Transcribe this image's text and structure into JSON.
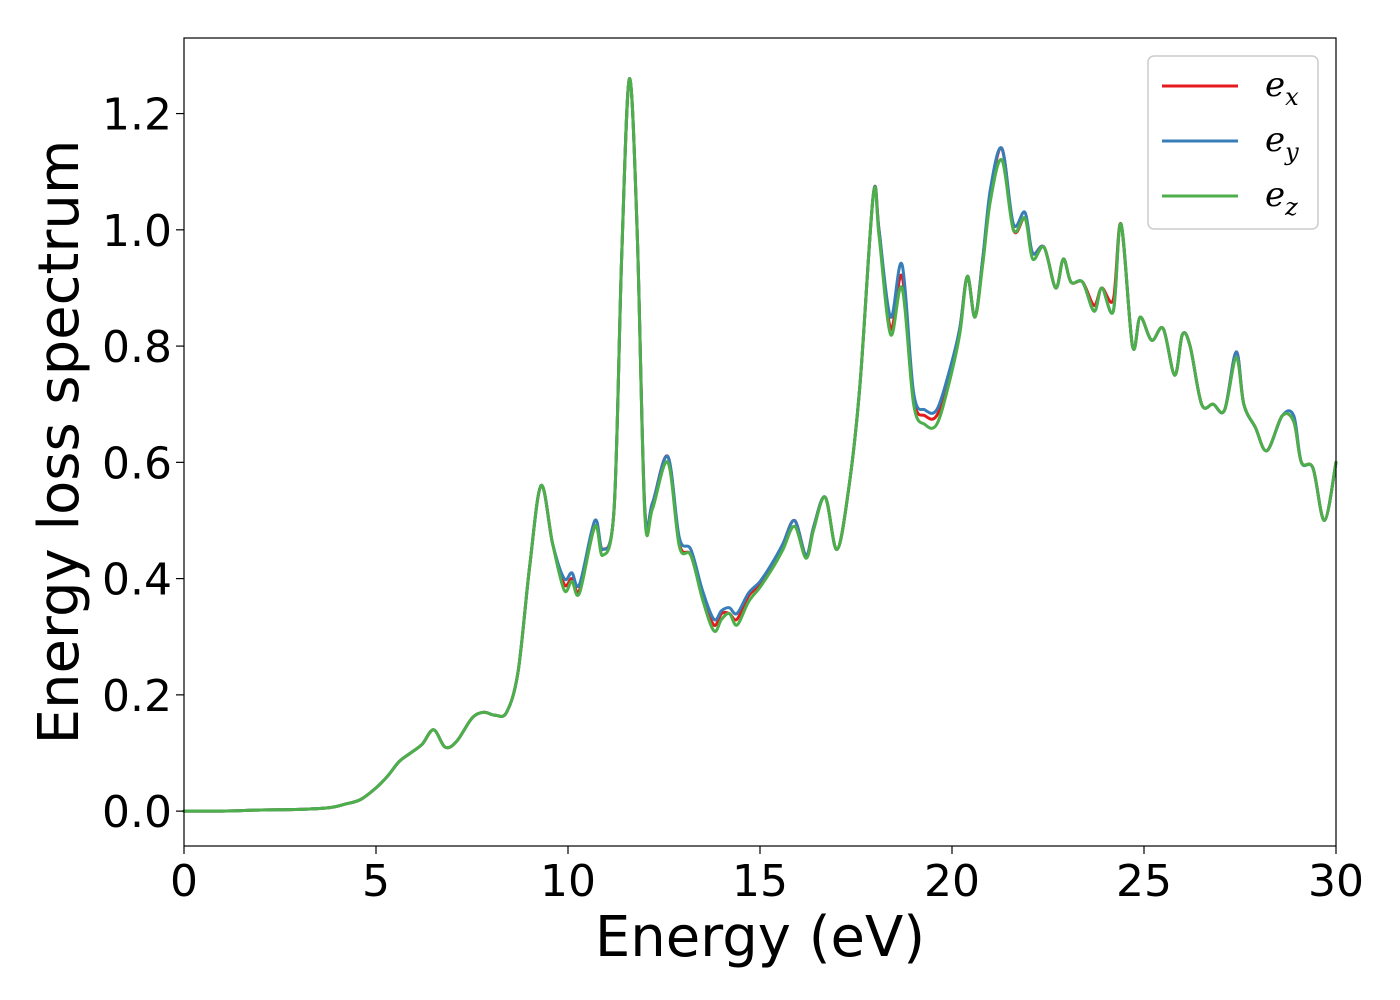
{
  "chart_data": {
    "type": "line",
    "title": "",
    "xlabel": "Energy (eV)",
    "ylabel": "Energy loss spectrum",
    "xlim": [
      0,
      30
    ],
    "ylim": [
      -0.06,
      1.33
    ],
    "xticks": [
      "0",
      "5",
      "10",
      "15",
      "20",
      "25",
      "30"
    ],
    "yticks": [
      "0.0",
      "0.2",
      "0.4",
      "0.6",
      "0.8",
      "1.0",
      "1.2"
    ],
    "grid": false,
    "legend_position": "top-right",
    "colors": {
      "e_x": "#e41a1c",
      "e_y": "#377eb8",
      "e_z": "#4daf4a"
    },
    "x": [
      0,
      1,
      2,
      3,
      3.8,
      4.2,
      4.6,
      5.0,
      5.3,
      5.6,
      5.9,
      6.2,
      6.5,
      6.8,
      7.1,
      7.5,
      7.8,
      8.1,
      8.4,
      8.7,
      9.0,
      9.3,
      9.6,
      9.9,
      10.1,
      10.3,
      10.7,
      10.9,
      11.2,
      11.4,
      11.6,
      11.8,
      12.0,
      12.2,
      12.6,
      12.9,
      13.2,
      13.5,
      13.8,
      14.0,
      14.2,
      14.4,
      14.7,
      15.0,
      15.3,
      15.6,
      15.9,
      16.2,
      16.4,
      16.7,
      17.0,
      17.3,
      17.6,
      17.95,
      18.1,
      18.4,
      18.7,
      19.0,
      19.3,
      19.6,
      19.9,
      20.2,
      20.4,
      20.6,
      20.8,
      21.0,
      21.3,
      21.6,
      21.9,
      22.1,
      22.4,
      22.7,
      22.9,
      23.1,
      23.4,
      23.7,
      23.9,
      24.2,
      24.4,
      24.7,
      24.9,
      25.2,
      25.5,
      25.8,
      26.0,
      26.2,
      26.5,
      26.8,
      27.1,
      27.4,
      27.6,
      27.9,
      28.2,
      28.6,
      28.9,
      29.1,
      29.4,
      29.7,
      30
    ],
    "series": [
      {
        "name": "e_x",
        "label_base": "e",
        "label_sub": "x",
        "values": [
          0,
          0,
          0.002,
          0.003,
          0.006,
          0.012,
          0.02,
          0.04,
          0.06,
          0.085,
          0.1,
          0.115,
          0.14,
          0.11,
          0.12,
          0.16,
          0.17,
          0.165,
          0.17,
          0.24,
          0.42,
          0.56,
          0.46,
          0.39,
          0.4,
          0.38,
          0.49,
          0.45,
          0.52,
          0.96,
          1.26,
          1.0,
          0.52,
          0.53,
          0.61,
          0.46,
          0.44,
          0.37,
          0.32,
          0.34,
          0.34,
          0.33,
          0.37,
          0.39,
          0.42,
          0.46,
          0.5,
          0.44,
          0.49,
          0.54,
          0.45,
          0.55,
          0.73,
          1.06,
          1.0,
          0.83,
          0.92,
          0.71,
          0.68,
          0.68,
          0.74,
          0.83,
          0.92,
          0.85,
          0.95,
          1.06,
          1.14,
          1.0,
          1.02,
          0.96,
          0.97,
          0.9,
          0.95,
          0.91,
          0.91,
          0.87,
          0.9,
          0.88,
          1.01,
          0.8,
          0.85,
          0.81,
          0.83,
          0.75,
          0.82,
          0.8,
          0.7,
          0.7,
          0.69,
          0.79,
          0.7,
          0.66,
          0.62,
          0.68,
          0.67,
          0.6,
          0.59,
          0.5,
          0.6
        ]
      },
      {
        "name": "e_y",
        "label_base": "e",
        "label_sub": "y",
        "values": [
          0,
          0,
          0.002,
          0.003,
          0.006,
          0.012,
          0.02,
          0.04,
          0.06,
          0.085,
          0.1,
          0.115,
          0.14,
          0.11,
          0.12,
          0.16,
          0.17,
          0.165,
          0.17,
          0.24,
          0.42,
          0.56,
          0.46,
          0.4,
          0.41,
          0.39,
          0.5,
          0.45,
          0.52,
          0.96,
          1.26,
          1.0,
          0.52,
          0.53,
          0.61,
          0.47,
          0.45,
          0.38,
          0.33,
          0.345,
          0.35,
          0.34,
          0.375,
          0.395,
          0.425,
          0.46,
          0.5,
          0.44,
          0.49,
          0.54,
          0.45,
          0.55,
          0.73,
          1.06,
          1.0,
          0.85,
          0.94,
          0.72,
          0.69,
          0.69,
          0.75,
          0.83,
          0.92,
          0.85,
          0.95,
          1.07,
          1.14,
          1.01,
          1.03,
          0.96,
          0.97,
          0.9,
          0.95,
          0.91,
          0.91,
          0.86,
          0.9,
          0.86,
          1.01,
          0.8,
          0.85,
          0.81,
          0.83,
          0.75,
          0.82,
          0.8,
          0.7,
          0.7,
          0.69,
          0.79,
          0.7,
          0.66,
          0.62,
          0.68,
          0.68,
          0.6,
          0.59,
          0.5,
          0.6
        ]
      },
      {
        "name": "e_z",
        "label_base": "e",
        "label_sub": "z",
        "values": [
          0,
          0,
          0.002,
          0.003,
          0.006,
          0.012,
          0.02,
          0.04,
          0.06,
          0.085,
          0.1,
          0.115,
          0.14,
          0.11,
          0.12,
          0.16,
          0.17,
          0.165,
          0.17,
          0.24,
          0.42,
          0.56,
          0.46,
          0.38,
          0.395,
          0.375,
          0.49,
          0.44,
          0.52,
          0.96,
          1.26,
          1.0,
          0.51,
          0.52,
          0.6,
          0.455,
          0.44,
          0.365,
          0.31,
          0.33,
          0.34,
          0.32,
          0.36,
          0.385,
          0.415,
          0.45,
          0.49,
          0.435,
          0.485,
          0.54,
          0.45,
          0.55,
          0.73,
          1.06,
          0.99,
          0.82,
          0.9,
          0.7,
          0.665,
          0.665,
          0.73,
          0.82,
          0.92,
          0.85,
          0.94,
          1.05,
          1.12,
          1.0,
          1.02,
          0.95,
          0.97,
          0.9,
          0.95,
          0.91,
          0.91,
          0.86,
          0.9,
          0.86,
          1.01,
          0.8,
          0.85,
          0.81,
          0.83,
          0.75,
          0.82,
          0.8,
          0.7,
          0.7,
          0.69,
          0.78,
          0.7,
          0.66,
          0.62,
          0.68,
          0.67,
          0.6,
          0.59,
          0.5,
          0.6
        ]
      }
    ]
  }
}
